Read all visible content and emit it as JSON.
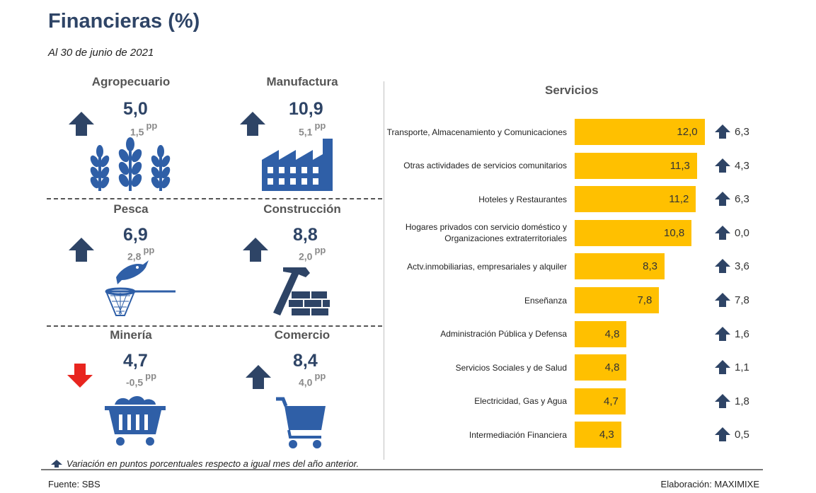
{
  "header": {
    "title": "Financieras (%)",
    "date": "Al 30 de junio de 2021"
  },
  "sectors": [
    {
      "name": "Agropecuario",
      "value": "5,0",
      "change": "1,5",
      "unit": "pp",
      "direction": "up",
      "icon": "wheat-icon"
    },
    {
      "name": "Manufactura",
      "value": "10,9",
      "change": "5,1",
      "unit": "pp",
      "direction": "up",
      "icon": "factory-icon"
    },
    {
      "name": "Pesca",
      "value": "6,9",
      "change": "2,8",
      "unit": "pp",
      "direction": "up",
      "icon": "fish-net-icon"
    },
    {
      "name": "Construcción",
      "value": "8,8",
      "change": "2,0",
      "unit": "pp",
      "direction": "up",
      "icon": "hammer-bricks-icon"
    },
    {
      "name": "Minería",
      "value": "4,7",
      "change": "-0,5",
      "unit": "pp",
      "direction": "down",
      "icon": "mining-cart-icon"
    },
    {
      "name": "Comercio",
      "value": "8,4",
      "change": "4,0",
      "unit": "pp",
      "direction": "up",
      "icon": "shopping-cart-icon"
    }
  ],
  "chart_data": {
    "type": "bar",
    "title": "Servicios",
    "categories": [
      "Transporte, Almacenamiento y Comunicaciones",
      "Otras actividades de servicios comunitarios",
      "Hoteles y Restaurantes",
      "Hogares privados con servicio doméstico y Organizaciones extraterritoriales",
      "Actv.inmobiliarias, empresariales y alquiler",
      "Enseñanza",
      "Administración Pública y Defensa",
      "Servicios Sociales y de Salud",
      "Electricidad, Gas y Agua",
      "Intermediación Financiera"
    ],
    "values": [
      12.0,
      11.3,
      11.2,
      10.8,
      8.3,
      7.8,
      4.8,
      4.8,
      4.7,
      4.3
    ],
    "value_labels": [
      "12,0",
      "11,3",
      "11,2",
      "10,8",
      "8,3",
      "7,8",
      "4,8",
      "4,8",
      "4,7",
      "4,3"
    ],
    "changes": [
      6.3,
      4.3,
      6.3,
      0.0,
      3.6,
      7.8,
      1.6,
      1.1,
      1.8,
      0.5
    ],
    "change_labels": [
      "6,3",
      "4,3",
      "6,3",
      "0,0",
      "3,6",
      "7,8",
      "1,6",
      "1,1",
      "1,8",
      "0,5"
    ],
    "orientation": "horizontal"
  },
  "legend": {
    "text": "Variación en puntos porcentuales respecto a igual mes del año anterior."
  },
  "footer": {
    "source": "Fuente: SBS",
    "credit": "Elaboración: MAXIMIXE"
  },
  "colors": {
    "navy": "#2e4466",
    "bar": "#ffc000",
    "down": "#e8251f",
    "icon_blue": "#2f5fa7"
  }
}
